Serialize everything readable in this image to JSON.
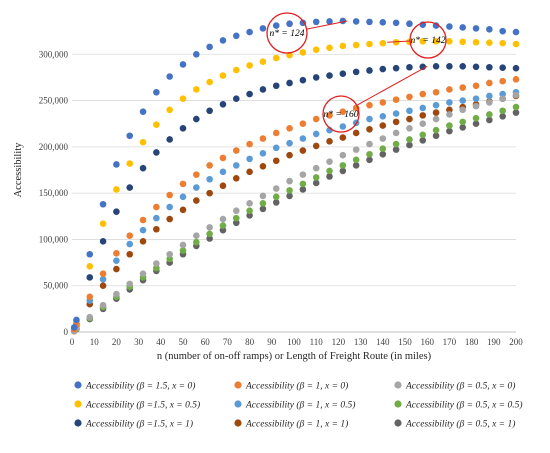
{
  "chart_data": {
    "type": "scatter",
    "title": "",
    "xlabel": "n (number of on-off ramps) or Length of Freight Route (in miles)",
    "ylabel": "Accessibility",
    "xlim": [
      0,
      200
    ],
    "ylim": [
      0,
      350000
    ],
    "xticks": [
      0,
      10,
      20,
      30,
      40,
      50,
      60,
      70,
      80,
      90,
      100,
      110,
      120,
      130,
      140,
      150,
      160,
      170,
      180,
      190,
      200
    ],
    "yticks": [
      0,
      50000,
      100000,
      150000,
      200000,
      250000,
      300000
    ],
    "ytick_labels": [
      "0",
      "50,000",
      "100,000",
      "150,000",
      "200,000",
      "250,000",
      "300,000"
    ],
    "grid": "horizontal",
    "legend_position": "bottom",
    "x": [
      1,
      2,
      8,
      14,
      20,
      26,
      32,
      38,
      44,
      50,
      56,
      62,
      68,
      74,
      80,
      86,
      92,
      98,
      104,
      110,
      116,
      122,
      128,
      134,
      140,
      146,
      152,
      158,
      164,
      170,
      176,
      182,
      188,
      194,
      200
    ],
    "series": [
      {
        "name": "Accessibility (β = 1.5, x = 0)",
        "color": "#4472c4",
        "values": [
          5000,
          13000,
          84000,
          138000,
          181000,
          212000,
          238000,
          259000,
          276000,
          289000,
          300000,
          308000,
          315000,
          320000,
          324000,
          328000,
          331000,
          333000,
          334000,
          335000,
          335500,
          336000,
          335500,
          335000,
          334500,
          334000,
          333000,
          332000,
          331000,
          330000,
          329000,
          328000,
          327000,
          325000,
          324000
        ]
      },
      {
        "name": "Accessibility (β = 1, x = 0)",
        "color": "#ed7d31",
        "values": [
          3000,
          8000,
          38000,
          63000,
          85000,
          104000,
          121000,
          135000,
          148000,
          160000,
          170000,
          180000,
          188000,
          196000,
          203000,
          209000,
          215000,
          220000,
          225000,
          230000,
          234000,
          238000,
          242000,
          245000,
          248000,
          251000,
          254000,
          257000,
          259000,
          262000,
          264000,
          266000,
          269000,
          271000,
          273000
        ]
      },
      {
        "name": "Accessibility (β = 0.5, x = 0)",
        "color": "#a5a5a5",
        "values": [
          1000,
          4000,
          16000,
          29000,
          41000,
          52000,
          63000,
          74000,
          84000,
          94000,
          104000,
          113000,
          122000,
          131000,
          139000,
          147000,
          155000,
          163000,
          170000,
          177000,
          184000,
          191000,
          197000,
          203000,
          209000,
          215000,
          220000,
          225000,
          230000,
          235000,
          240000,
          244000,
          248000,
          252000,
          256000
        ]
      },
      {
        "name": "Accessibility (β =1.5, x = 0.5)",
        "color": "#ffc000",
        "values": [
          4000,
          11000,
          71000,
          117000,
          154000,
          182000,
          205000,
          224000,
          240000,
          252000,
          262000,
          270000,
          277000,
          283000,
          288000,
          292000,
          296000,
          299000,
          302000,
          305000,
          307000,
          309000,
          310000,
          311000,
          312000,
          313000,
          313500,
          314000,
          314000,
          314000,
          313500,
          313000,
          312500,
          312000,
          311000
        ]
      },
      {
        "name": "Accessibility (β = 1, x = 0.5)",
        "color": "#5b9bd5",
        "values": [
          2500,
          7000,
          34000,
          57000,
          77000,
          95000,
          110000,
          123000,
          135000,
          146000,
          156000,
          165000,
          173000,
          180000,
          187000,
          193000,
          199000,
          204000,
          209000,
          214000,
          218000,
          222000,
          226000,
          230000,
          233000,
          236000,
          239000,
          242000,
          245000,
          248000,
          250000,
          252000,
          255000,
          257000,
          259000
        ]
      },
      {
        "name": "Accessibility (β = 0.5, x = 0.5)",
        "color": "#70ad47",
        "values": [
          1000,
          3500,
          15000,
          27000,
          38000,
          49000,
          59000,
          69000,
          79000,
          88000,
          97000,
          106000,
          115000,
          123000,
          131000,
          139000,
          146000,
          153000,
          160000,
          167000,
          174000,
          180000,
          186000,
          192000,
          198000,
          203000,
          208000,
          213000,
          218000,
          223000,
          227000,
          231000,
          235000,
          239000,
          243000
        ]
      },
      {
        "name": "Accessibility (β =1.5, x = 1)",
        "color": "#264478",
        "values": [
          3500,
          9000,
          59000,
          98000,
          130000,
          156000,
          177000,
          194000,
          208000,
          220000,
          230000,
          239000,
          246000,
          252000,
          257000,
          262000,
          266000,
          269000,
          272000,
          275000,
          277000,
          279000,
          281000,
          282500,
          284000,
          285000,
          286000,
          286500,
          287000,
          287000,
          287000,
          286500,
          286000,
          285500,
          285000
        ]
      },
      {
        "name": "Accessibility (β = 1, x = 1)",
        "color": "#9e480e",
        "values": [
          2000,
          6000,
          30000,
          50000,
          68000,
          84000,
          98000,
          111000,
          122000,
          132000,
          142000,
          150000,
          158000,
          166000,
          173000,
          179000,
          185000,
          191000,
          196000,
          201000,
          206000,
          210000,
          215000,
          219000,
          223000,
          227000,
          230000,
          234000,
          237000,
          240000,
          243000,
          246000,
          249000,
          252000,
          255000
        ]
      },
      {
        "name": "Accessibility (β = 0.5, x = 1)",
        "color": "#636363",
        "values": [
          900,
          3000,
          14000,
          25000,
          36000,
          46000,
          56000,
          66000,
          75000,
          84000,
          93000,
          101000,
          110000,
          118000,
          126000,
          133000,
          140000,
          147000,
          154000,
          161000,
          168000,
          174000,
          180000,
          186000,
          192000,
          197000,
          202000,
          207000,
          212000,
          217000,
          221000,
          225000,
          229000,
          233000,
          237000
        ]
      }
    ],
    "annotations": [
      {
        "text": "n* = 124",
        "x": 124,
        "series_index": 0
      },
      {
        "text": "n* = 142",
        "x": 142,
        "series_index": 3
      },
      {
        "text": "n* = 160",
        "x": 160,
        "series_index": 6
      }
    ]
  }
}
